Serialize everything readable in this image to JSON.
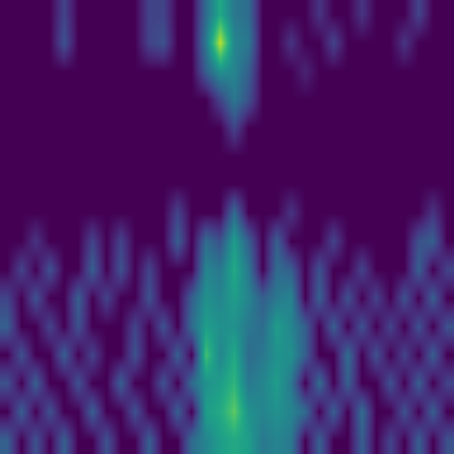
{
  "chart_data": {
    "type": "heatmap",
    "color": "Viridis",
    "tick_labels": false,
    "grid": false,
    "color_range": [
      0,
      1
    ],
    "cells": [
      [
        0,
        0,
        0,
        0,
        0.2,
        0,
        0,
        0,
        0,
        0,
        0.2,
        0.2,
        0,
        0,
        0.35,
        0.6,
        0.4,
        0.35,
        0,
        0,
        0,
        0,
        0.15,
        0,
        0,
        0.15,
        0,
        0,
        0,
        0.2,
        0,
        0
      ],
      [
        0,
        0,
        0,
        0,
        0.25,
        0,
        0,
        0,
        0,
        0,
        0.2,
        0.25,
        0,
        0,
        0.4,
        0.9,
        0.45,
        0.4,
        0,
        0,
        0.15,
        0,
        0,
        0.2,
        0,
        0,
        0,
        0,
        0.15,
        0,
        0,
        0
      ],
      [
        0,
        0,
        0,
        0,
        0,
        0,
        0,
        0,
        0,
        0,
        0,
        0,
        0,
        0,
        0.3,
        0.5,
        0.45,
        0.3,
        0,
        0,
        0,
        0.1,
        0,
        0,
        0,
        0,
        0,
        0,
        0,
        0,
        0,
        0
      ],
      [
        0,
        0,
        0,
        0,
        0,
        0,
        0,
        0,
        0,
        0,
        0,
        0,
        0,
        0,
        0,
        0.2,
        0.4,
        0.25,
        0,
        0,
        0,
        0,
        0,
        0,
        0,
        0,
        0,
        0,
        0,
        0,
        0,
        0
      ],
      [
        0,
        0,
        0,
        0,
        0,
        0,
        0,
        0,
        0,
        0,
        0,
        0,
        0,
        0,
        0,
        0,
        0.2,
        0,
        0,
        0,
        0,
        0,
        0,
        0,
        0,
        0,
        0,
        0,
        0,
        0,
        0,
        0
      ],
      [
        0,
        0,
        0,
        0,
        0,
        0,
        0,
        0,
        0,
        0,
        0,
        0,
        0,
        0,
        0,
        0,
        0,
        0,
        0,
        0,
        0,
        0,
        0,
        0,
        0,
        0,
        0,
        0,
        0,
        0,
        0,
        0
      ],
      [
        0,
        0,
        0,
        0,
        0,
        0,
        0,
        0,
        0,
        0,
        0,
        0,
        0,
        0,
        0,
        0,
        0,
        0,
        0,
        0,
        0,
        0,
        0,
        0,
        0,
        0,
        0,
        0,
        0,
        0,
        0,
        0
      ],
      [
        0,
        0,
        0,
        0,
        0,
        0,
        0,
        0,
        0,
        0,
        0,
        0,
        0.2,
        0,
        0,
        0,
        0.35,
        0,
        0,
        0,
        0.15,
        0,
        0,
        0,
        0,
        0,
        0,
        0,
        0,
        0,
        0.15,
        0
      ],
      [
        0,
        0,
        0.15,
        0,
        0,
        0,
        0.2,
        0,
        0.2,
        0,
        0,
        0,
        0.3,
        0,
        0.35,
        0.25,
        0.55,
        0.3,
        0,
        0.3,
        0,
        0,
        0,
        0.2,
        0,
        0,
        0,
        0,
        0,
        0.25,
        0.3,
        0
      ],
      [
        0,
        0.2,
        0,
        0.25,
        0,
        0,
        0.3,
        0,
        0.25,
        0,
        0.2,
        0,
        0,
        0,
        0.45,
        0.4,
        0.6,
        0.4,
        0,
        0.35,
        0.3,
        0,
        0.25,
        0,
        0,
        0.2,
        0,
        0,
        0,
        0.3,
        0,
        0.2
      ],
      [
        0.2,
        0,
        0.25,
        0,
        0,
        0.3,
        0,
        0.2,
        0,
        0,
        0.25,
        0,
        0,
        0.3,
        0.5,
        0.45,
        0.55,
        0.45,
        0.3,
        0.4,
        0.45,
        0,
        0.3,
        0,
        0.25,
        0,
        0.2,
        0,
        0.25,
        0,
        0.3,
        0
      ],
      [
        0.3,
        0,
        0,
        0.2,
        0,
        0.25,
        0,
        0,
        0,
        0.2,
        0,
        0.25,
        0,
        0.35,
        0.55,
        0.5,
        0.5,
        0.4,
        0.35,
        0.55,
        0.45,
        0.3,
        0,
        0.3,
        0,
        0.25,
        0,
        0.2,
        0,
        0.25,
        0,
        0.25
      ],
      [
        0,
        0.25,
        0,
        0,
        0.3,
        0,
        0.2,
        0,
        0,
        0.25,
        0,
        0,
        0.3,
        0,
        0.7,
        0.45,
        0.6,
        0.35,
        0.4,
        0.5,
        0.5,
        0.3,
        0,
        0,
        0.35,
        0,
        0.25,
        0,
        0.2,
        0,
        0.3,
        0
      ],
      [
        0.25,
        0,
        0.3,
        0,
        0,
        0.25,
        0,
        0,
        0.3,
        0,
        0,
        0.25,
        0,
        0.35,
        0.5,
        0.55,
        0.65,
        0.4,
        0.45,
        0.55,
        0.4,
        0,
        0.35,
        0,
        0.3,
        0,
        0,
        0.25,
        0,
        0.3,
        0,
        0.2
      ],
      [
        0,
        0.3,
        0,
        0.25,
        0,
        0,
        0.3,
        0,
        0,
        0.25,
        0,
        0,
        0.3,
        0,
        0.55,
        0.6,
        0.75,
        0.5,
        0.45,
        0.5,
        0.45,
        0.35,
        0,
        0.3,
        0,
        0.35,
        0,
        0,
        0.25,
        0,
        0.3,
        0
      ],
      [
        0.3,
        0,
        0.25,
        0,
        0.3,
        0,
        0,
        0.25,
        0,
        0,
        0.3,
        0,
        0,
        0.35,
        0.45,
        0.55,
        0.6,
        0.55,
        0.4,
        0.45,
        0.4,
        0,
        0.3,
        0,
        0,
        0.3,
        0,
        0.2,
        0,
        0.3,
        0,
        0.25
      ]
    ]
  }
}
